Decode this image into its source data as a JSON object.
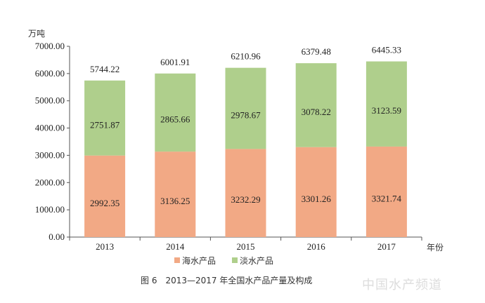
{
  "chart_data": {
    "type": "bar",
    "stacked": true,
    "title": "图 6　2013—2017 年全国水产品产量及构成",
    "xlabel": "年份",
    "ylabel": "万吨",
    "ylim": [
      0,
      7000
    ],
    "yticks": [
      "0.00",
      "1000.00",
      "2000.00",
      "3000.00",
      "4000.00",
      "5000.00",
      "6000.00",
      "7000.00"
    ],
    "categories": [
      "2013",
      "2014",
      "2015",
      "2016",
      "2017"
    ],
    "series": [
      {
        "name": "海水产品",
        "color": "#F2A985",
        "values": [
          2992.35,
          3136.25,
          3232.29,
          3301.26,
          3321.74
        ],
        "labels": [
          "2992.35",
          "3136.25",
          "3232.29",
          "3301.26",
          "3321.74"
        ]
      },
      {
        "name": "淡水产品",
        "color": "#AFCF8C",
        "values": [
          2751.87,
          2865.66,
          2978.67,
          3078.22,
          3123.59
        ],
        "labels": [
          "2751.87",
          "2865.66",
          "2978.67",
          "3078.22",
          "3123.59"
        ]
      }
    ],
    "totals": [
      "5744.22",
      "6001.91",
      "6210.96",
      "6379.48",
      "6445.33"
    ],
    "legend": "bottom",
    "grid": false
  },
  "watermark": "中国水产频道"
}
